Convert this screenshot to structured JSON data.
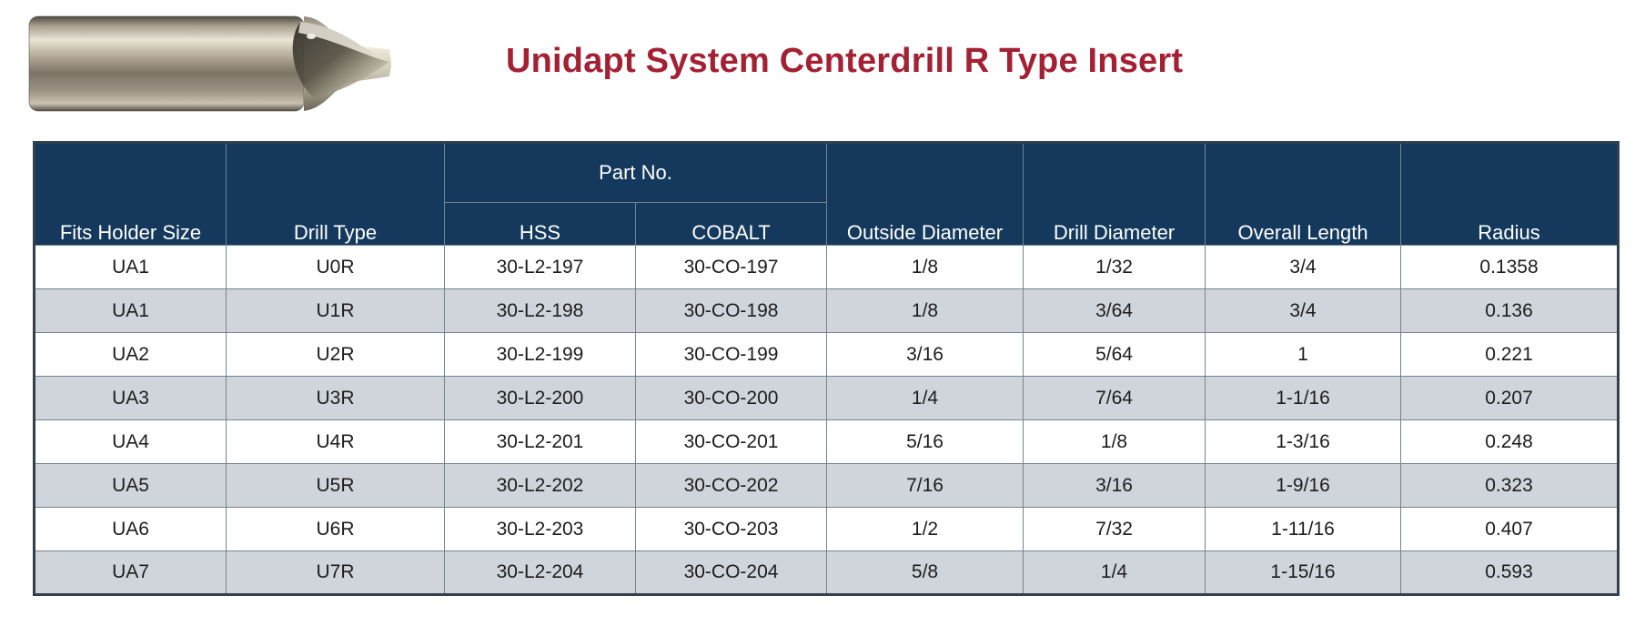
{
  "title": "Unidapt System Centerdrill R Type Insert",
  "hero_image": {
    "name": "centerdrill-r-type-insert-photo"
  },
  "colors": {
    "title_red": "#a42134",
    "header_navy": "#14395d",
    "row_alt_gray": "#cfd5da",
    "border_gray": "#75848f",
    "text_dark": "#1d1d1f"
  },
  "table": {
    "part_no_group_label": "Part No.",
    "columns": [
      "Fits Holder Size",
      "Drill Type",
      "HSS",
      "COBALT",
      "Outside Diameter",
      "Drill Diameter",
      "Overall Length",
      "Radius"
    ],
    "rows": [
      [
        "UA1",
        "U0R",
        "30-L2-197",
        "30-CO-197",
        "1/8",
        "1/32",
        "3/4",
        "0.1358"
      ],
      [
        "UA1",
        "U1R",
        "30-L2-198",
        "30-CO-198",
        "1/8",
        "3/64",
        "3/4",
        "0.136"
      ],
      [
        "UA2",
        "U2R",
        "30-L2-199",
        "30-CO-199",
        "3/16",
        "5/64",
        "1",
        "0.221"
      ],
      [
        "UA3",
        "U3R",
        "30-L2-200",
        "30-CO-200",
        "1/4",
        "7/64",
        "1-1/16",
        "0.207"
      ],
      [
        "UA4",
        "U4R",
        "30-L2-201",
        "30-CO-201",
        "5/16",
        "1/8",
        "1-3/16",
        "0.248"
      ],
      [
        "UA5",
        "U5R",
        "30-L2-202",
        "30-CO-202",
        "7/16",
        "3/16",
        "1-9/16",
        "0.323"
      ],
      [
        "UA6",
        "U6R",
        "30-L2-203",
        "30-CO-203",
        "1/2",
        "7/32",
        "1-11/16",
        "0.407"
      ],
      [
        "UA7",
        "U7R",
        "30-L2-204",
        "30-CO-204",
        "5/8",
        "1/4",
        "1-15/16",
        "0.593"
      ]
    ]
  }
}
